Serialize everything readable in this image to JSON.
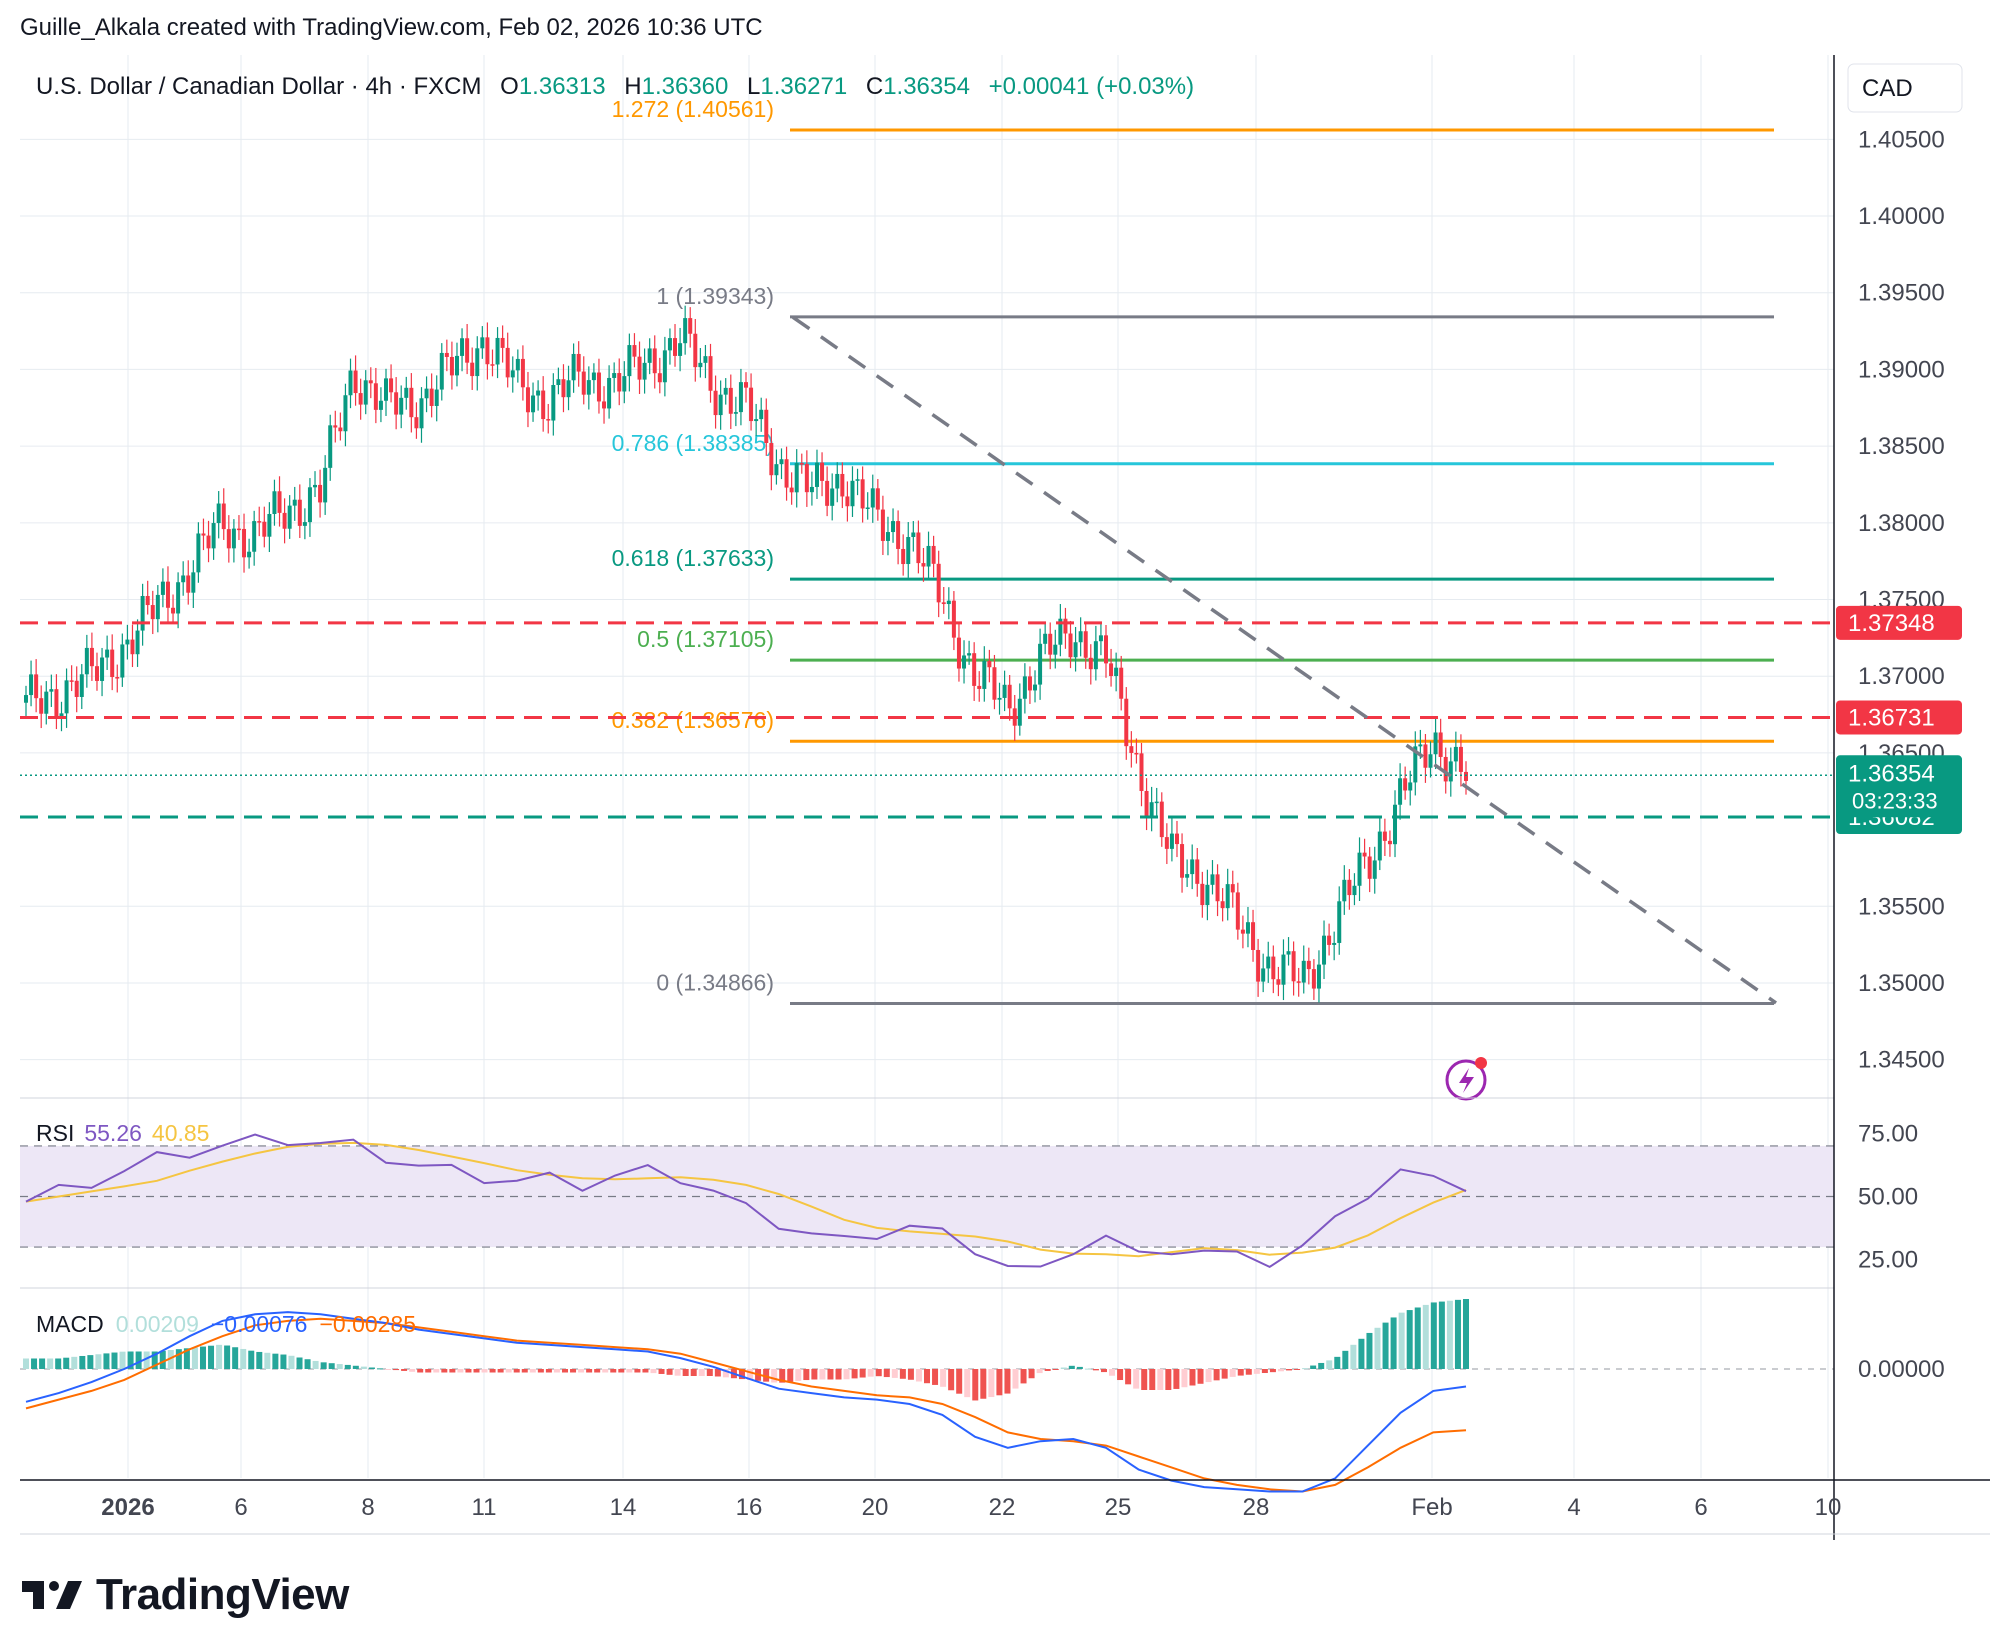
{
  "credit": "Guille_Alkala created with TradingView.com, Feb 02, 2026 10:36 UTC",
  "legend": {
    "symbol": "U.S. Dollar / Canadian Dollar · 4h · FXCM",
    "o_label": "O",
    "o_value": "1.36313",
    "h_label": "H",
    "h_value": "1.36360",
    "l_label": "L",
    "l_value": "1.36271",
    "c_label": "C",
    "c_value": "1.36354",
    "change": "+0.00041 (+0.03%)"
  },
  "currency": "CAD",
  "brand": "TradingView",
  "colors": {
    "up": "#089981",
    "down": "#f23645",
    "grid": "#e6ebf0",
    "text": "#131722",
    "axis_text": "#434651",
    "trendline": "#787b86",
    "rsi": "#7e57c2",
    "rsi_ma": "#f5c542",
    "rsi_band": "#ede7f6",
    "macd": "#2962ff",
    "signal": "#ff6d00",
    "price_tag": "#089981",
    "res_tag": "#f23645"
  },
  "chart_data": {
    "type": "candlestick",
    "interval": "4h",
    "x_ticks": [
      "2026",
      "6",
      "8",
      "11",
      "14",
      "16",
      "20",
      "22",
      "25",
      "28",
      "Feb",
      "4",
      "6",
      "10"
    ],
    "ylim": [
      1.3425,
      1.4105
    ],
    "y_ticks": [
      "1.40500",
      "1.40000",
      "1.39500",
      "1.39000",
      "1.38500",
      "1.38000",
      "1.37500",
      "1.37000",
      "1.36500",
      "1.35500",
      "1.35000",
      "1.34500"
    ],
    "price_path": [
      1.368,
      1.369,
      1.37,
      1.372,
      1.3745,
      1.377,
      1.38,
      1.379,
      1.381,
      1.382,
      1.39,
      1.3875,
      1.388,
      1.39,
      1.392,
      1.389,
      1.388,
      1.3895,
      1.389,
      1.3905,
      1.392,
      1.389,
      1.3875,
      1.384,
      1.382,
      1.383,
      1.38,
      1.379,
      1.375,
      1.37,
      1.368,
      1.371,
      1.373,
      1.371,
      1.364,
      1.358,
      1.357,
      1.354,
      1.351,
      1.35,
      1.354,
      1.358,
      1.362,
      1.366,
      1.3635
    ],
    "fibonacci": [
      {
        "label": "1.272 (1.40561)",
        "level": 1.40561,
        "color": "#ff9800"
      },
      {
        "label": "1 (1.39343)",
        "level": 1.39343,
        "color": "#787b86"
      },
      {
        "label": "0.786 (1.38385)",
        "level": 1.38385,
        "color": "#26c6da"
      },
      {
        "label": "0.618 (1.37633)",
        "level": 1.37633,
        "color": "#089981"
      },
      {
        "label": "0.5 (1.37105)",
        "level": 1.37105,
        "color": "#4caf50"
      },
      {
        "label": "0.382 (1.36576)",
        "level": 1.36576,
        "color": "#ff9800"
      },
      {
        "label": "0 (1.34866)",
        "level": 1.34866,
        "color": "#787b86"
      }
    ],
    "horizontal_levels": [
      {
        "value": 1.37348,
        "label": "1.37348",
        "color": "#f23645"
      },
      {
        "value": 1.36731,
        "label": "1.36731",
        "color": "#f23645"
      },
      {
        "value": 1.36082,
        "label": "1.36082",
        "color": "#089981"
      }
    ],
    "last_price": {
      "value": 1.36354,
      "label": "1.36354",
      "countdown": "03:23:33"
    },
    "trendline": {
      "from": [
        "16",
        1.3934
      ],
      "to": [
        "9",
        1.3487
      ]
    },
    "rsi": {
      "label": "RSI",
      "value": "55.26",
      "ma_value": "40.85",
      "ylim": [
        15,
        85
      ],
      "ticks": [
        "75.00",
        "50.00",
        "25.00"
      ],
      "band": [
        30,
        70
      ],
      "values": [
        48,
        52,
        56,
        60,
        65,
        68,
        70,
        72,
        73,
        71,
        70,
        66,
        62,
        60,
        58,
        56,
        57,
        55,
        58,
        60,
        58,
        52,
        45,
        40,
        35,
        32,
        36,
        38,
        35,
        30,
        22,
        20,
        30,
        34,
        26,
        30,
        28,
        26,
        25,
        30,
        40,
        52,
        60,
        56,
        55
      ]
    },
    "macd": {
      "label": "MACD",
      "hist": "0.00209",
      "macd": "−0.00076",
      "signal": "−0.00285",
      "ticks": [
        "0.00000"
      ],
      "macd_values": [
        -0.0015,
        -0.0011,
        -0.0006,
        0.0,
        0.0007,
        0.0015,
        0.0022,
        0.0025,
        0.0026,
        0.0025,
        0.0023,
        0.0021,
        0.0018,
        0.0016,
        0.0014,
        0.0012,
        0.0011,
        0.001,
        0.0009,
        0.0008,
        0.0005,
        0.0001,
        -0.0004,
        -0.0009,
        -0.0011,
        -0.0013,
        -0.0014,
        -0.0016,
        -0.0021,
        -0.0031,
        -0.0036,
        -0.0033,
        -0.0032,
        -0.0036,
        -0.0046,
        -0.0051,
        -0.0054,
        -0.0055,
        -0.0056,
        -0.0056,
        -0.005,
        -0.0035,
        -0.002,
        -0.001,
        -0.0008
      ],
      "signal_values": [
        -0.0018,
        -0.0014,
        -0.001,
        -0.0005,
        0.0002,
        0.0009,
        0.0015,
        0.002,
        0.0022,
        0.0023,
        0.0022,
        0.0021,
        0.0019,
        0.0017,
        0.0015,
        0.0013,
        0.0012,
        0.0011,
        0.001,
        0.0009,
        0.0007,
        0.0003,
        -0.0001,
        -0.0005,
        -0.0008,
        -0.001,
        -0.0012,
        -0.0013,
        -0.0016,
        -0.0022,
        -0.0029,
        -0.0032,
        -0.0033,
        -0.0035,
        -0.004,
        -0.0045,
        -0.005,
        -0.0053,
        -0.0055,
        -0.0056,
        -0.0053,
        -0.0045,
        -0.0036,
        -0.0029,
        -0.0028
      ]
    }
  }
}
